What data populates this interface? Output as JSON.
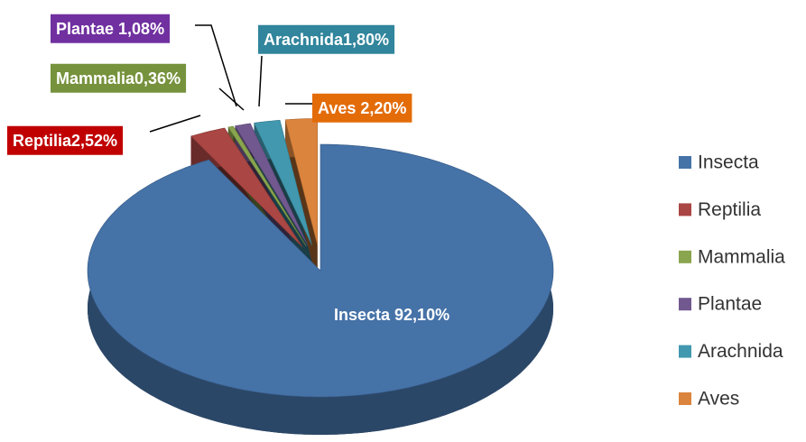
{
  "chart_data": {
    "type": "pie",
    "categories": [
      "Insecta",
      "Reptilia",
      "Mammalia",
      "Plantae",
      "Arachnida",
      "Aves"
    ],
    "values": [
      92.1,
      2.52,
      0.36,
      1.08,
      1.8,
      2.2
    ],
    "value_labels": [
      "Insecta 92,10%",
      "Reptilia2,52%",
      "Mammalia0,36%",
      "Plantae 1,08%",
      "Arachnida1,80%",
      "Aves 2,20%"
    ],
    "colors": [
      "#4572a7",
      "#aa4643",
      "#89a54e",
      "#71588f",
      "#4198af",
      "#db843d"
    ],
    "label_colors": [
      null,
      "#c00000",
      "#76923c",
      "#7030a0",
      "#31859c",
      "#e36c09"
    ],
    "legend": "right"
  }
}
